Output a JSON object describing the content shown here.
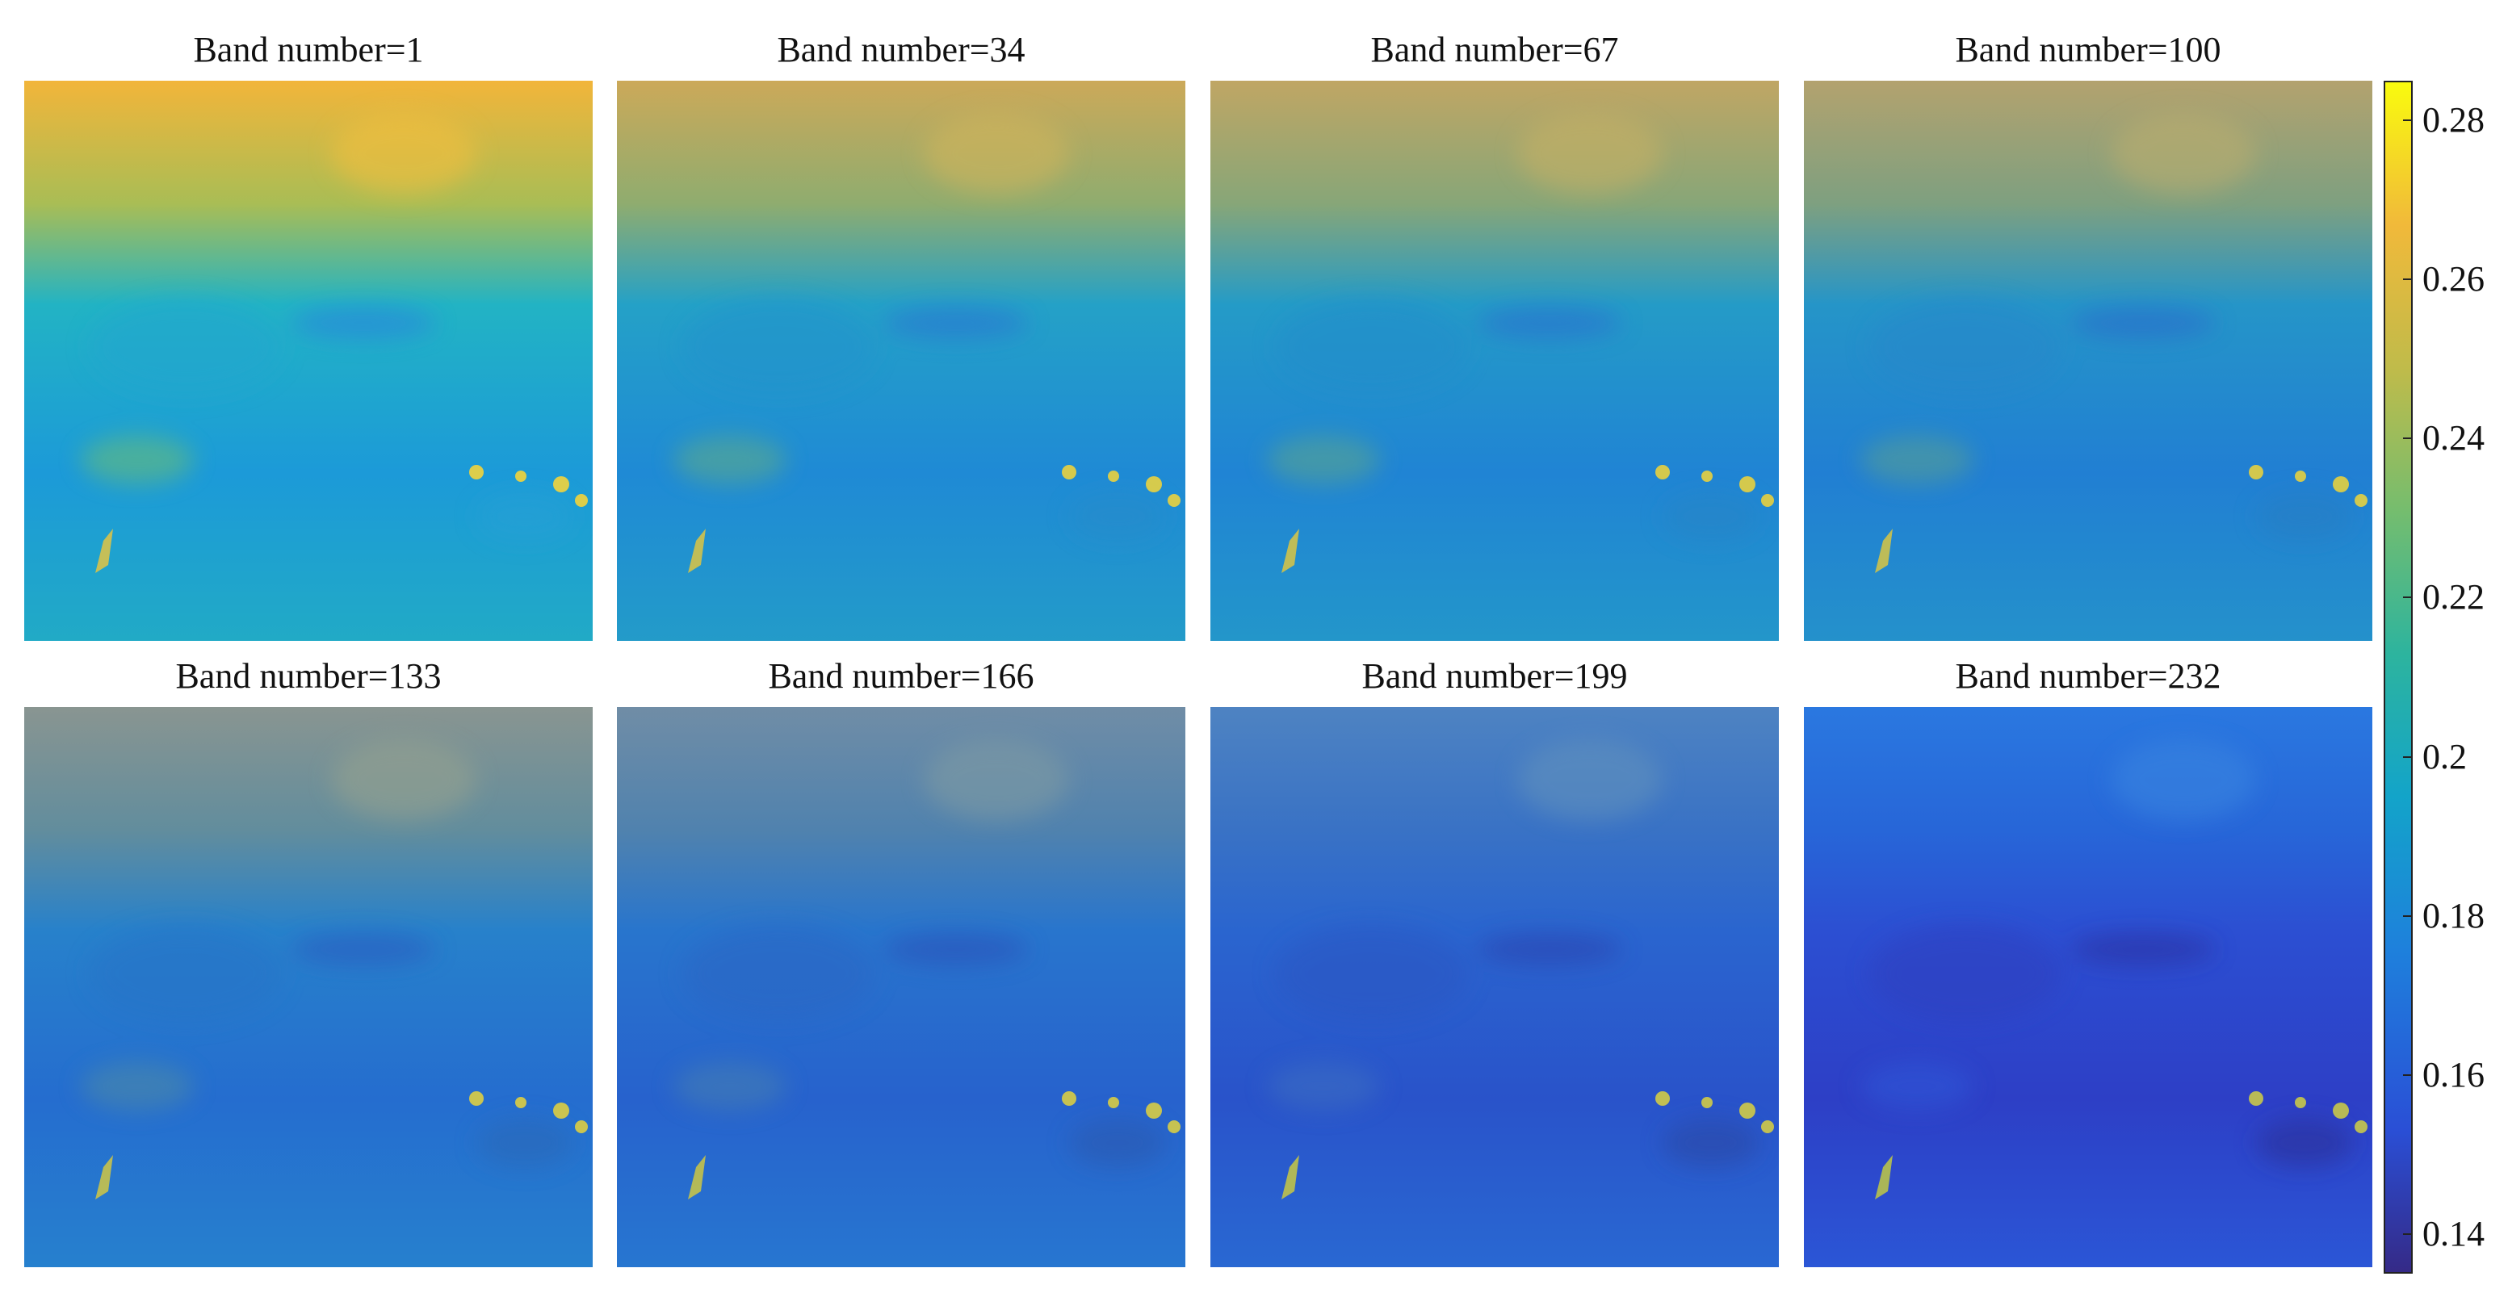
{
  "panels": [
    {
      "title": "Band number=1",
      "level": 0.0
    },
    {
      "title": "Band number=34",
      "level": 0.18
    },
    {
      "title": "Band number=67",
      "level": 0.24
    },
    {
      "title": "Band number=100",
      "level": 0.3
    },
    {
      "title": "Band number=133",
      "level": 0.5
    },
    {
      "title": "Band number=166",
      "level": 0.62
    },
    {
      "title": "Band number=199",
      "level": 0.78
    },
    {
      "title": "Band number=232",
      "level": 1.0
    }
  ],
  "colorbar": {
    "min": 0.135,
    "max": 0.285,
    "ticks": [
      "0.28",
      "0.26",
      "0.24",
      "0.22",
      "0.2",
      "0.18",
      "0.16",
      "0.14"
    ],
    "tick_values": [
      0.28,
      0.26,
      0.24,
      0.22,
      0.2,
      0.18,
      0.16,
      0.14
    ],
    "colormap": "parula",
    "colors": [
      "#352a87",
      "#2a4fd6",
      "#1e80dc",
      "#13a4c9",
      "#2db49e",
      "#75bd6e",
      "#c0bb4a",
      "#f1b93a",
      "#f9fb0e"
    ]
  }
}
